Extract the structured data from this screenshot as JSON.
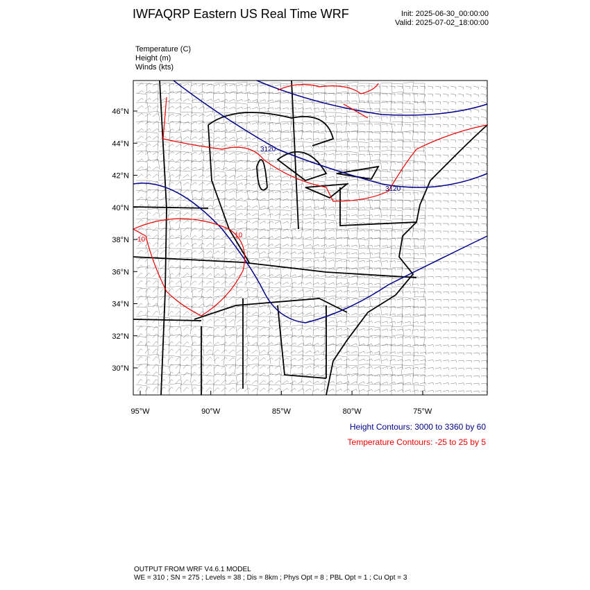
{
  "header": {
    "title": "IWFAQRP Eastern US Real Time WRF",
    "init": "Init: 2025-06-30_00:00:00",
    "valid": "Valid: 2025-07-02_18:00:00"
  },
  "fields": [
    "Temperature   (C)",
    "Height   (m)",
    "Winds   (kts)"
  ],
  "lat_labels": [
    "46°N",
    "44°N",
    "42°N",
    "40°N",
    "38°N",
    "36°N",
    "34°N",
    "32°N",
    "30°N"
  ],
  "lon_labels": [
    "95°W",
    "90°W",
    "85°W",
    "80°W",
    "75°W"
  ],
  "contour_labels": {
    "height": [
      "3120",
      "3120"
    ],
    "temperature": [
      "10",
      "10"
    ]
  },
  "legend": {
    "height": "Height Contours: 3000 to 3360 by 60",
    "temperature": "Temperature Contours: -25 to 25 by 5"
  },
  "footer": [
    "OUTPUT FROM WRF V4.6.1 MODEL",
    "WE = 310 ; SN = 275 ; Levels = 38 ; Dis = 8km ; Phys Opt = 8 ; PBL Opt = 1 ; Cu Opt = 3"
  ]
}
